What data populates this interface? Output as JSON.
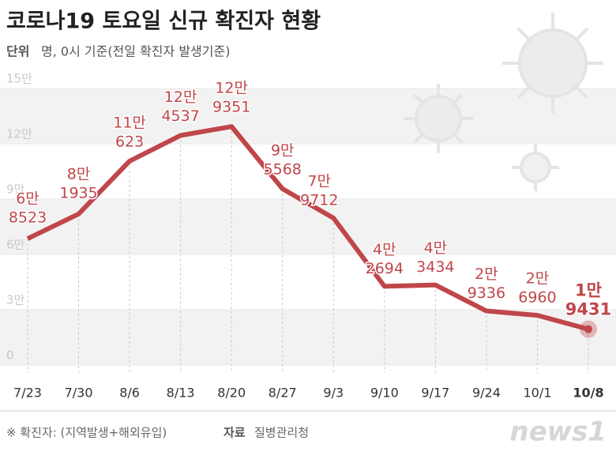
{
  "chart_data": {
    "type": "line",
    "title": "코로나19 토요일 신규 확진자 현황",
    "unit_label": "단위",
    "subtitle": "명, 0시 기준(전일 확진자 발생기준)",
    "categories": [
      "7/23",
      "7/30",
      "8/6",
      "8/13",
      "8/20",
      "8/27",
      "9/3",
      "9/10",
      "9/17",
      "9/24",
      "10/1",
      "10/8"
    ],
    "values": [
      68523,
      81935,
      110623,
      124537,
      129351,
      95568,
      79712,
      42694,
      43434,
      29336,
      26960,
      19431
    ],
    "value_labels": [
      [
        "6만",
        "8523"
      ],
      [
        "8만",
        "1935"
      ],
      [
        "11만",
        "623"
      ],
      [
        "12만",
        "4537"
      ],
      [
        "12만",
        "9351"
      ],
      [
        "9만",
        "5568"
      ],
      [
        "7만",
        "9712"
      ],
      [
        "4만",
        "2694"
      ],
      [
        "4만",
        "3434"
      ],
      [
        "2만",
        "9336"
      ],
      [
        "2만",
        "6960"
      ],
      [
        "1만",
        "9431"
      ]
    ],
    "color": "#c0464a",
    "ylim": [
      0,
      150000
    ],
    "yticks": [
      0,
      {
        "value": 30000,
        "label": "3만"
      },
      {
        "value": 60000,
        "label": "6만"
      },
      {
        "value": 90000,
        "label": "9만"
      },
      {
        "value": 120000,
        "label": "12만"
      },
      {
        "value": 150000,
        "label": "15만"
      }
    ],
    "footnote": "※ 확진자: (지역발생+해외유입)",
    "source_label": "자료",
    "source": "질병관리청",
    "logo": "news1"
  }
}
